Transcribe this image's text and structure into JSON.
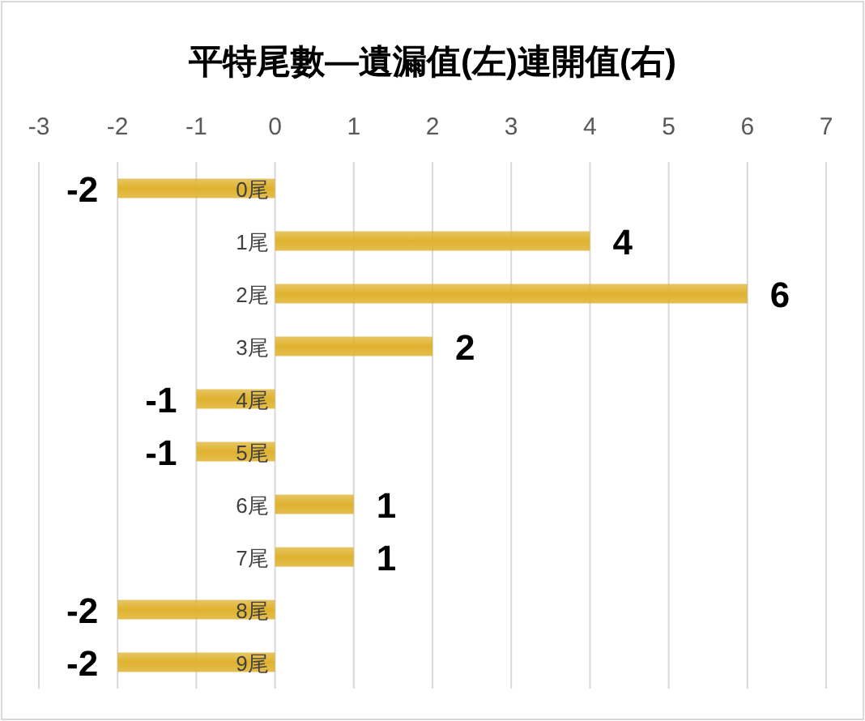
{
  "chart_data": {
    "type": "bar",
    "orientation": "horizontal",
    "title": "平特尾數—遺漏值(左)連開值(右)",
    "categories": [
      "0尾",
      "1尾",
      "2尾",
      "3尾",
      "4尾",
      "5尾",
      "6尾",
      "7尾",
      "8尾",
      "9尾"
    ],
    "values": [
      -2,
      4,
      6,
      2,
      -1,
      -1,
      1,
      1,
      -2,
      -2
    ],
    "color": "#dfb22f",
    "xlim": [
      -3,
      7
    ],
    "xticks": [
      -3,
      -2,
      -1,
      0,
      1,
      2,
      3,
      4,
      5,
      6,
      7
    ],
    "grid": "x",
    "data_labels": true
  }
}
